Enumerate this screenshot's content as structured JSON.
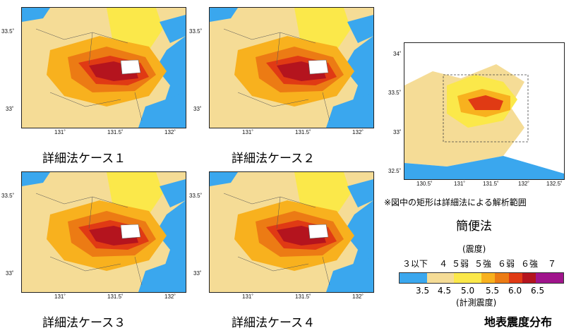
{
  "panels": [
    {
      "caption": "詳細法ケース１",
      "ticks_x": [
        "131˚",
        "131.5˚",
        "132˚"
      ],
      "ticks_y": [
        "33.5˚",
        "33˚"
      ]
    },
    {
      "caption": "詳細法ケース２",
      "ticks_x": [
        "131˚",
        "131.5˚",
        "132˚"
      ],
      "ticks_y": [
        "33.5˚",
        "33˚"
      ]
    },
    {
      "caption": "詳細法ケース３",
      "ticks_x": [
        "131˚",
        "131.5˚",
        "132˚"
      ],
      "ticks_y": [
        "33.5˚",
        "33˚"
      ]
    },
    {
      "caption": "詳細法ケース４",
      "ticks_x": [
        "131˚",
        "131.5˚",
        "132˚"
      ],
      "ticks_y": [
        "33.5˚",
        "33˚"
      ]
    }
  ],
  "simple": {
    "caption": "簡便法",
    "ticks_x": [
      "130.5˚",
      "131˚",
      "131.5˚",
      "132˚",
      "132.5˚"
    ],
    "ticks_y": [
      "34˚",
      "33.5˚",
      "33˚",
      "32.5˚"
    ],
    "note": "※図中の矩形は詳細法による解析範囲"
  },
  "legend": {
    "top_label": "(震度)",
    "classes": [
      "３以下",
      "４",
      "５弱",
      "５強",
      "６弱",
      "６強",
      "７"
    ],
    "values": [
      "3.5",
      "4.5",
      "5.0",
      "5.5",
      "6.0",
      "6.5"
    ],
    "bottom_label": "(計測震度)",
    "colors": [
      "#3aa7ee",
      "#3aa7ee",
      "#f5dc96",
      "#f5dc96",
      "#fbe84a",
      "#fbe84a",
      "#f8b11e",
      "#ec7b14",
      "#e03a14",
      "#b4141e",
      "#a0148c",
      "#a0148c"
    ]
  },
  "title": "地表震度分布"
}
